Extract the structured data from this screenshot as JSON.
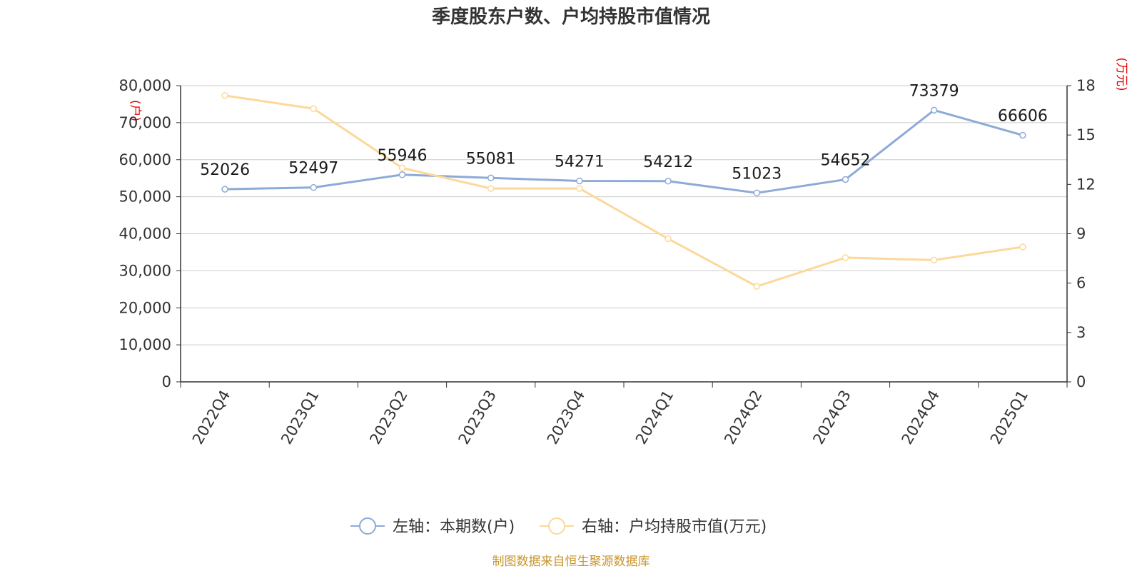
{
  "title": "季度股东户数、户均持股市值情况",
  "source": "制图数据来自恒生聚源数据库",
  "left_unit": "(户)",
  "right_unit": "(万元)",
  "colors": {
    "series1": "#8eaad8",
    "series2": "#fcd89a",
    "grid": "#cccccc",
    "axis": "#333333",
    "unit": "#e60000",
    "source": "#c9952b"
  },
  "legend": [
    {
      "label": "左轴：本期数(户)"
    },
    {
      "label": "右轴：户均持股市值(万元)"
    }
  ],
  "chart_data": {
    "type": "line",
    "title": "季度股东户数、户均持股市值情况",
    "categories": [
      "2022Q4",
      "2023Q1",
      "2023Q2",
      "2023Q3",
      "2023Q4",
      "2024Q1",
      "2024Q2",
      "2024Q3",
      "2024Q4",
      "2025Q1"
    ],
    "y_left": {
      "label": "(户)",
      "ylim": [
        0,
        80000
      ],
      "ticks": [
        0,
        10000,
        20000,
        30000,
        40000,
        50000,
        60000,
        70000,
        80000
      ],
      "tick_labels": [
        "0",
        "10,000",
        "20,000",
        "30,000",
        "40,000",
        "50,000",
        "60,000",
        "70,000",
        "80,000"
      ]
    },
    "y_right": {
      "label": "(万元)",
      "ylim": [
        0,
        18
      ],
      "ticks": [
        0,
        3,
        6,
        9,
        12,
        15,
        18
      ],
      "tick_labels": [
        "0",
        "3",
        "6",
        "9",
        "12",
        "15",
        "18"
      ]
    },
    "series": [
      {
        "name": "左轴：本期数(户)",
        "axis": "left",
        "values": [
          52026,
          52497,
          55946,
          55081,
          54271,
          54212,
          51023,
          54652,
          73379,
          66606
        ],
        "data_labels": [
          "52026",
          "52497",
          "55946",
          "55081",
          "54271",
          "54212",
          "51023",
          "54652",
          "73379",
          "66606"
        ]
      },
      {
        "name": "右轴：户均持股市值(万元)",
        "axis": "right",
        "values": [
          17.4,
          16.6,
          13.0,
          11.75,
          11.75,
          8.7,
          5.8,
          7.55,
          7.4,
          8.2
        ]
      }
    ],
    "grid": true,
    "legend_position": "bottom-center"
  }
}
